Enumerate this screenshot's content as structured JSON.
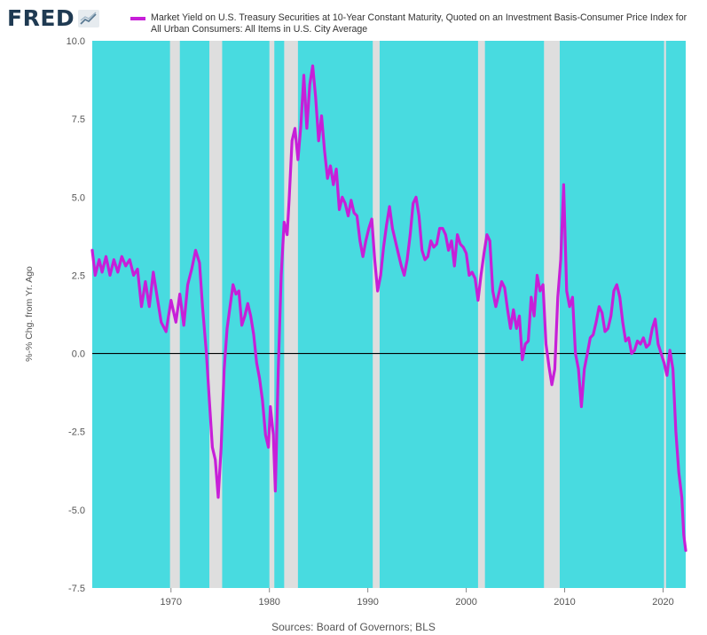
{
  "logo": {
    "text": "FRED"
  },
  "legend": {
    "label": "Market Yield on U.S. Treasury Securities at 10-Year Constant Maturity, Quoted on an Investment Basis-Consumer Price Index for All Urban Consumers: All Items in U.S. City Average"
  },
  "source": "Sources: Board of Governors; BLS",
  "chart_data": {
    "type": "line",
    "ylabel": "%-% Chg. from Yr. Ago",
    "xlim": [
      1962.0,
      2022.3
    ],
    "ylim": [
      -7.5,
      10.0
    ],
    "yticks": [
      "10.0",
      "7.5",
      "5.0",
      "2.5",
      "0.0",
      "-2.5",
      "-5.0",
      "-7.5"
    ],
    "xticks": [
      "1970",
      "1980",
      "1990",
      "2000",
      "2010",
      "2020"
    ],
    "grid": false,
    "legend_position": "top",
    "colors": {
      "line": "#c71fd8",
      "plot_background": "#48dbe0",
      "recession_band": "#dedede",
      "zero_line": "#000000"
    },
    "recessions": [
      [
        1969.9,
        1970.9
      ],
      [
        1973.9,
        1975.2
      ],
      [
        1980.0,
        1980.5
      ],
      [
        1981.5,
        1982.9
      ],
      [
        1990.5,
        1991.2
      ],
      [
        2001.2,
        2001.9
      ],
      [
        2007.9,
        2009.5
      ],
      [
        2020.1,
        2020.3
      ]
    ],
    "series": [
      {
        "points": [
          [
            1962.0,
            3.3
          ],
          [
            1962.3,
            2.5
          ],
          [
            1962.7,
            3.0
          ],
          [
            1963.0,
            2.6
          ],
          [
            1963.4,
            3.1
          ],
          [
            1963.8,
            2.5
          ],
          [
            1964.2,
            3.0
          ],
          [
            1964.6,
            2.6
          ],
          [
            1965.0,
            3.1
          ],
          [
            1965.4,
            2.8
          ],
          [
            1965.8,
            3.0
          ],
          [
            1966.2,
            2.5
          ],
          [
            1966.6,
            2.7
          ],
          [
            1967.0,
            1.5
          ],
          [
            1967.4,
            2.3
          ],
          [
            1967.8,
            1.5
          ],
          [
            1968.2,
            2.6
          ],
          [
            1968.6,
            1.8
          ],
          [
            1969.0,
            1.0
          ],
          [
            1969.5,
            0.7
          ],
          [
            1970.0,
            1.7
          ],
          [
            1970.5,
            1.0
          ],
          [
            1970.9,
            1.9
          ],
          [
            1971.3,
            0.9
          ],
          [
            1971.7,
            2.2
          ],
          [
            1972.1,
            2.7
          ],
          [
            1972.5,
            3.3
          ],
          [
            1972.9,
            2.9
          ],
          [
            1973.2,
            1.5
          ],
          [
            1973.6,
            0.0
          ],
          [
            1973.9,
            -1.5
          ],
          [
            1974.2,
            -3.0
          ],
          [
            1974.5,
            -3.4
          ],
          [
            1974.8,
            -4.6
          ],
          [
            1975.1,
            -3.0
          ],
          [
            1975.4,
            -0.5
          ],
          [
            1975.7,
            0.8
          ],
          [
            1976.0,
            1.5
          ],
          [
            1976.3,
            2.2
          ],
          [
            1976.6,
            1.9
          ],
          [
            1976.9,
            2.0
          ],
          [
            1977.2,
            0.9
          ],
          [
            1977.5,
            1.2
          ],
          [
            1977.8,
            1.6
          ],
          [
            1978.1,
            1.2
          ],
          [
            1978.4,
            0.6
          ],
          [
            1978.7,
            -0.3
          ],
          [
            1979.0,
            -0.8
          ],
          [
            1979.3,
            -1.5
          ],
          [
            1979.6,
            -2.6
          ],
          [
            1979.9,
            -3.0
          ],
          [
            1980.1,
            -1.7
          ],
          [
            1980.4,
            -2.6
          ],
          [
            1980.6,
            -4.4
          ],
          [
            1980.9,
            -0.5
          ],
          [
            1981.2,
            2.5
          ],
          [
            1981.5,
            4.2
          ],
          [
            1981.8,
            3.8
          ],
          [
            1982.0,
            4.9
          ],
          [
            1982.3,
            6.8
          ],
          [
            1982.6,
            7.2
          ],
          [
            1982.9,
            6.2
          ],
          [
            1983.2,
            7.3
          ],
          [
            1983.5,
            8.9
          ],
          [
            1983.8,
            7.2
          ],
          [
            1984.1,
            8.6
          ],
          [
            1984.4,
            9.2
          ],
          [
            1984.7,
            8.2
          ],
          [
            1985.0,
            6.8
          ],
          [
            1985.3,
            7.6
          ],
          [
            1985.6,
            6.5
          ],
          [
            1985.9,
            5.6
          ],
          [
            1986.2,
            6.0
          ],
          [
            1986.5,
            5.4
          ],
          [
            1986.8,
            5.9
          ],
          [
            1987.1,
            4.6
          ],
          [
            1987.4,
            5.0
          ],
          [
            1987.7,
            4.8
          ],
          [
            1988.0,
            4.4
          ],
          [
            1988.3,
            4.9
          ],
          [
            1988.6,
            4.5
          ],
          [
            1988.9,
            4.4
          ],
          [
            1989.2,
            3.6
          ],
          [
            1989.5,
            3.1
          ],
          [
            1989.8,
            3.6
          ],
          [
            1990.1,
            4.0
          ],
          [
            1990.4,
            4.3
          ],
          [
            1990.7,
            3.0
          ],
          [
            1991.0,
            2.0
          ],
          [
            1991.3,
            2.5
          ],
          [
            1991.6,
            3.4
          ],
          [
            1991.9,
            4.1
          ],
          [
            1992.2,
            4.7
          ],
          [
            1992.5,
            4.0
          ],
          [
            1992.8,
            3.6
          ],
          [
            1993.1,
            3.2
          ],
          [
            1993.4,
            2.8
          ],
          [
            1993.7,
            2.5
          ],
          [
            1994.0,
            3.0
          ],
          [
            1994.3,
            3.8
          ],
          [
            1994.6,
            4.8
          ],
          [
            1994.9,
            5.0
          ],
          [
            1995.2,
            4.4
          ],
          [
            1995.5,
            3.3
          ],
          [
            1995.8,
            3.0
          ],
          [
            1996.1,
            3.1
          ],
          [
            1996.4,
            3.6
          ],
          [
            1996.7,
            3.4
          ],
          [
            1997.0,
            3.5
          ],
          [
            1997.3,
            4.0
          ],
          [
            1997.6,
            4.0
          ],
          [
            1997.9,
            3.8
          ],
          [
            1998.2,
            3.3
          ],
          [
            1998.5,
            3.6
          ],
          [
            1998.8,
            2.8
          ],
          [
            1999.1,
            3.8
          ],
          [
            1999.4,
            3.5
          ],
          [
            1999.7,
            3.4
          ],
          [
            2000.0,
            3.2
          ],
          [
            2000.3,
            2.5
          ],
          [
            2000.6,
            2.6
          ],
          [
            2000.9,
            2.4
          ],
          [
            2001.2,
            1.7
          ],
          [
            2001.5,
            2.5
          ],
          [
            2001.8,
            3.2
          ],
          [
            2002.1,
            3.8
          ],
          [
            2002.4,
            3.6
          ],
          [
            2002.7,
            2.0
          ],
          [
            2003.0,
            1.5
          ],
          [
            2003.3,
            1.9
          ],
          [
            2003.6,
            2.3
          ],
          [
            2003.9,
            2.1
          ],
          [
            2004.2,
            1.4
          ],
          [
            2004.5,
            0.8
          ],
          [
            2004.8,
            1.4
          ],
          [
            2005.1,
            0.8
          ],
          [
            2005.4,
            1.2
          ],
          [
            2005.7,
            -0.2
          ],
          [
            2006.0,
            0.3
          ],
          [
            2006.3,
            0.4
          ],
          [
            2006.6,
            1.8
          ],
          [
            2006.9,
            1.2
          ],
          [
            2007.2,
            2.5
          ],
          [
            2007.5,
            2.0
          ],
          [
            2007.8,
            2.2
          ],
          [
            2008.1,
            0.3
          ],
          [
            2008.4,
            -0.4
          ],
          [
            2008.7,
            -1.0
          ],
          [
            2009.0,
            -0.5
          ],
          [
            2009.3,
            1.8
          ],
          [
            2009.6,
            3.0
          ],
          [
            2009.9,
            5.4
          ],
          [
            2010.2,
            2.0
          ],
          [
            2010.5,
            1.5
          ],
          [
            2010.8,
            1.8
          ],
          [
            2011.1,
            0.0
          ],
          [
            2011.4,
            -0.5
          ],
          [
            2011.7,
            -1.7
          ],
          [
            2012.0,
            -0.5
          ],
          [
            2012.3,
            0.0
          ],
          [
            2012.6,
            0.5
          ],
          [
            2012.9,
            0.6
          ],
          [
            2013.2,
            1.0
          ],
          [
            2013.5,
            1.5
          ],
          [
            2013.8,
            1.3
          ],
          [
            2014.1,
            0.7
          ],
          [
            2014.4,
            0.8
          ],
          [
            2014.7,
            1.2
          ],
          [
            2015.0,
            2.0
          ],
          [
            2015.3,
            2.2
          ],
          [
            2015.6,
            1.8
          ],
          [
            2015.9,
            1.0
          ],
          [
            2016.2,
            0.4
          ],
          [
            2016.5,
            0.5
          ],
          [
            2016.8,
            0.0
          ],
          [
            2017.1,
            0.1
          ],
          [
            2017.4,
            0.4
          ],
          [
            2017.7,
            0.3
          ],
          [
            2018.0,
            0.5
          ],
          [
            2018.3,
            0.2
          ],
          [
            2018.6,
            0.3
          ],
          [
            2018.9,
            0.8
          ],
          [
            2019.2,
            1.1
          ],
          [
            2019.5,
            0.3
          ],
          [
            2019.8,
            0.0
          ],
          [
            2020.1,
            -0.3
          ],
          [
            2020.4,
            -0.7
          ],
          [
            2020.7,
            0.1
          ],
          [
            2021.0,
            -0.5
          ],
          [
            2021.3,
            -2.5
          ],
          [
            2021.6,
            -3.8
          ],
          [
            2021.9,
            -4.6
          ],
          [
            2022.1,
            -5.8
          ],
          [
            2022.3,
            -6.3
          ]
        ]
      }
    ]
  }
}
